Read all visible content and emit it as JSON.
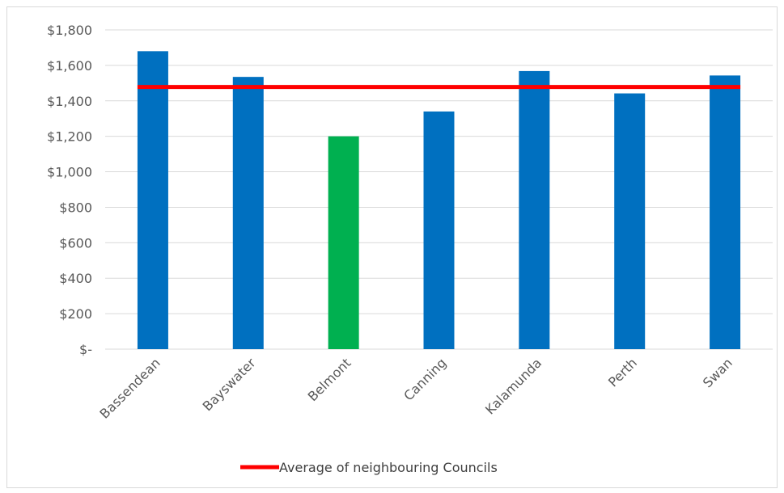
{
  "chart_data": {
    "type": "bar",
    "categories": [
      "Bassendean",
      "Bayswater",
      "Belmont",
      "Canning",
      "Kalamunda",
      "Perth",
      "Swan"
    ],
    "values": [
      1680,
      1535,
      1200,
      1340,
      1568,
      1442,
      1543
    ],
    "bar_colors": [
      "#0070c0",
      "#0070c0",
      "#00b050",
      "#0070c0",
      "#0070c0",
      "#0070c0",
      "#0070c0"
    ],
    "yticks": [
      0,
      200,
      400,
      600,
      800,
      1000,
      1200,
      1400,
      1600,
      1800
    ],
    "ytick_labels": [
      "$-",
      "$200",
      "$400",
      "$600",
      "$800",
      "$1,000",
      "$1,200",
      "$1,400",
      "$1,600",
      "$1,800"
    ],
    "ylim": [
      0,
      1800
    ],
    "grid": true,
    "average_line": {
      "value": 1478,
      "color": "#ff0000"
    },
    "legend": {
      "placement": "bottom",
      "label": "Average of neighbouring Councils"
    },
    "title": "",
    "xlabel": "",
    "ylabel": ""
  }
}
